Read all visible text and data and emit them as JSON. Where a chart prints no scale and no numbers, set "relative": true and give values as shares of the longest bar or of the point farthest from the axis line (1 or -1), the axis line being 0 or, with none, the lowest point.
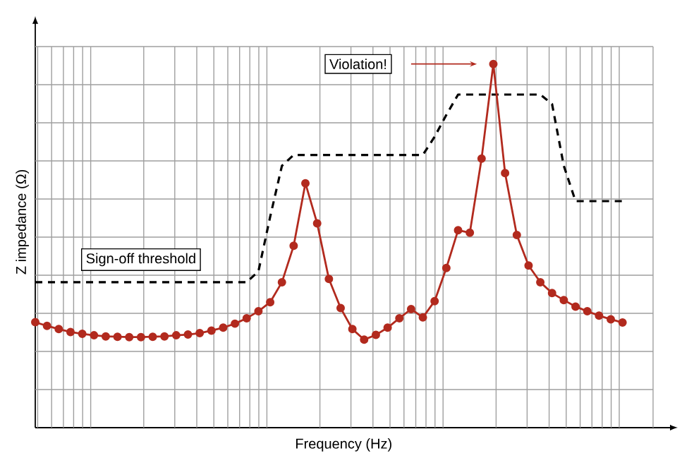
{
  "chart_data": {
    "type": "line",
    "relative": true,
    "xlabel": "Frequency (Hz)",
    "ylabel": "Z impedance (Ω)",
    "grid": true,
    "categories": [
      null,
      null,
      null,
      null,
      null,
      null,
      null,
      null,
      null,
      null,
      null,
      null,
      null,
      null,
      null,
      null,
      null,
      null,
      null,
      null,
      null,
      null,
      null,
      null,
      null,
      null,
      null,
      null,
      null,
      null,
      null,
      null,
      null,
      null,
      null,
      null,
      null,
      null,
      null,
      null,
      null,
      null,
      null,
      null,
      null,
      null,
      null,
      null,
      null,
      null,
      null
    ],
    "series": [
      {
        "color": "#b22a1e",
        "marker": "circle",
        "values": [
          0.29,
          0.28,
          0.271,
          0.263,
          0.258,
          0.254,
          0.251,
          0.25,
          0.249,
          0.249,
          0.25,
          0.251,
          0.254,
          0.256,
          0.26,
          0.267,
          0.275,
          0.286,
          0.301,
          0.32,
          0.345,
          0.4,
          0.5,
          0.672,
          0.562,
          0.409,
          0.329,
          0.271,
          0.242,
          0.255,
          0.275,
          0.301,
          0.326,
          0.303,
          0.348,
          0.439,
          0.543,
          0.536,
          0.74,
          1.0,
          0.7,
          0.53,
          0.446,
          0.4,
          0.37,
          0.351,
          0.333,
          0.32,
          0.308,
          0.298,
          0.289
        ]
      },
      {
        "name": "Sign-off threshold",
        "color": "#000000",
        "marker": "none",
        "line_style": "dashed",
        "values": [
          0.4,
          0.4,
          0.4,
          0.4,
          0.4,
          0.4,
          0.4,
          0.4,
          0.4,
          0.4,
          0.4,
          0.4,
          0.4,
          0.4,
          0.4,
          0.4,
          0.4,
          0.4,
          0.4,
          0.43,
          0.58,
          0.72,
          0.75,
          0.75,
          0.75,
          0.75,
          0.75,
          0.75,
          0.75,
          0.75,
          0.75,
          0.75,
          0.75,
          0.75,
          0.8,
          0.86,
          0.916,
          0.916,
          0.916,
          0.916,
          0.916,
          0.916,
          0.916,
          0.916,
          0.89,
          0.72,
          0.623,
          0.623,
          0.623,
          0.623,
          0.623
        ]
      }
    ],
    "annotations": [
      "Violation!"
    ]
  }
}
